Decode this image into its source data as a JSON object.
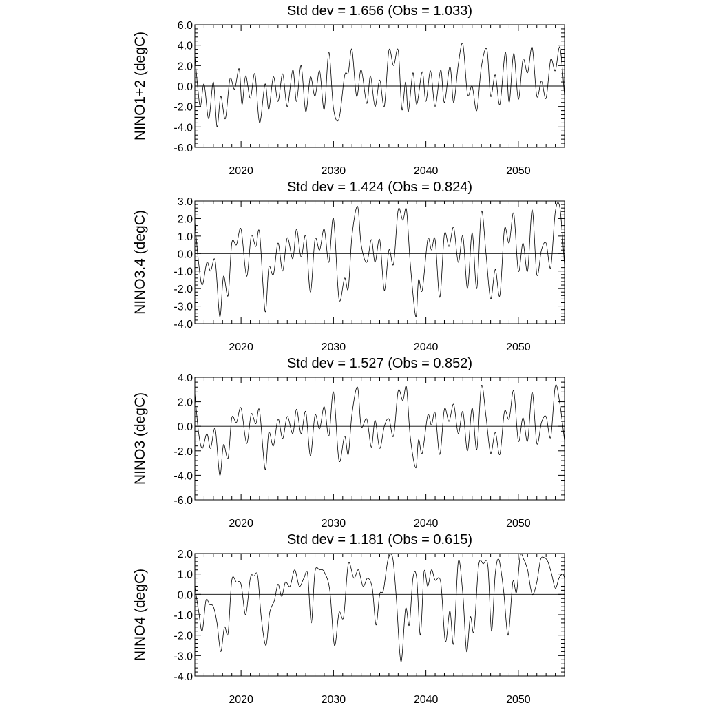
{
  "chart_data": [
    {
      "type": "line",
      "title": "Std dev = 1.656 (Obs = 1.033)",
      "xlabel": "",
      "ylabel": "NINO1+2 (degC)",
      "xlim": [
        2015,
        2055
      ],
      "ylim": [
        -6.0,
        6.0
      ],
      "yticks": [
        -6.0,
        -4.0,
        -2.0,
        0.0,
        2.0,
        4.0,
        6.0
      ],
      "ytick_labels": [
        "-6.0",
        "-4.0",
        "-2.0",
        "0.0",
        "2.0",
        "4.0",
        "6.0"
      ],
      "xticks": [
        2020,
        2030,
        2040,
        2050
      ],
      "xtick_labels": [
        "2020",
        "2030",
        "2040",
        "2050"
      ],
      "zero_line": true,
      "grid": false,
      "series": [
        {
          "x": [
            2015.0,
            2015.3,
            2015.6,
            2016.0,
            2016.5,
            2017.0,
            2017.4,
            2017.8,
            2018.3,
            2018.8,
            2019.3,
            2019.8,
            2020.1,
            2020.5,
            2021.0,
            2021.5,
            2022.0,
            2022.6,
            2023.0,
            2023.5,
            2024.0,
            2024.5,
            2025.0,
            2025.6,
            2026.0,
            2026.5,
            2027.0,
            2027.5,
            2028.0,
            2028.5,
            2029.0,
            2029.5,
            2030.0,
            2030.6,
            2031.2,
            2031.6,
            2032.0,
            2032.5,
            2033.0,
            2033.6,
            2034.0,
            2034.5,
            2035.0,
            2035.5,
            2036.0,
            2036.5,
            2037.0,
            2037.4,
            2037.8,
            2038.1,
            2038.6,
            2039.0,
            2039.6,
            2040.0,
            2040.5,
            2041.0,
            2041.6,
            2042.0,
            2042.6,
            2043.0,
            2043.5,
            2044.0,
            2044.5,
            2045.0,
            2045.5,
            2046.0,
            2046.6,
            2047.0,
            2047.5,
            2048.0,
            2048.6,
            2049.0,
            2049.5,
            2050.0,
            2050.5,
            2051.0,
            2051.5,
            2052.0,
            2052.5,
            2053.0,
            2053.5,
            2054.0,
            2054.5,
            2055.0
          ],
          "y": [
            3.0,
            0.0,
            -2.0,
            0.2,
            -3.2,
            0.4,
            -4.0,
            -1.0,
            -3.2,
            0.7,
            -0.3,
            1.7,
            -1.8,
            1.0,
            -1.2,
            1.2,
            -3.6,
            0.2,
            -2.3,
            0.9,
            -1.5,
            1.2,
            -2.0,
            1.6,
            -1.5,
            2.0,
            -2.5,
            0.9,
            -1.0,
            1.5,
            -2.3,
            3.3,
            -2.2,
            -3.2,
            1.0,
            1.3,
            3.6,
            -1.0,
            1.6,
            -1.7,
            1.0,
            -2.0,
            0.6,
            -2.0,
            3.5,
            2.0,
            3.5,
            -2.3,
            0.4,
            -2.5,
            1.3,
            -1.8,
            1.4,
            -1.5,
            1.5,
            -2.0,
            1.6,
            -1.6,
            1.9,
            -1.6,
            2.1,
            4.1,
            -0.8,
            0.0,
            -2.4,
            1.9,
            3.6,
            -1.0,
            1.1,
            -1.8,
            3.3,
            -1.6,
            3.2,
            -1.3,
            2.6,
            1.3,
            3.8,
            -1.0,
            0.5,
            -1.2,
            2.6,
            1.5,
            3.8,
            -1.0
          ]
        }
      ]
    },
    {
      "type": "line",
      "title": "Std dev = 1.424 (Obs = 0.824)",
      "xlabel": "",
      "ylabel": "NINO3.4 (degC)",
      "xlim": [
        2015,
        2055
      ],
      "ylim": [
        -4.0,
        3.0
      ],
      "yticks": [
        -4.0,
        -3.0,
        -2.0,
        -1.0,
        0.0,
        1.0,
        2.0,
        3.0
      ],
      "ytick_labels": [
        "-4.0",
        "-3.0",
        "-2.0",
        "-1.0",
        "0.0",
        "1.0",
        "2.0",
        "3.0"
      ],
      "xticks": [
        2020,
        2030,
        2040,
        2050
      ],
      "xtick_labels": [
        "2020",
        "2030",
        "2040",
        "2050"
      ],
      "zero_line": true,
      "grid": false,
      "series": [
        {
          "x": [
            2015.0,
            2015.4,
            2015.8,
            2016.3,
            2016.7,
            2017.2,
            2017.7,
            2018.1,
            2018.6,
            2019.0,
            2019.5,
            2020.0,
            2020.6,
            2021.1,
            2021.6,
            2022.0,
            2022.6,
            2023.0,
            2023.5,
            2024.0,
            2024.5,
            2025.0,
            2025.6,
            2026.0,
            2026.5,
            2027.0,
            2027.5,
            2028.0,
            2028.5,
            2029.0,
            2029.5,
            2030.0,
            2030.6,
            2031.2,
            2031.6,
            2032.0,
            2032.6,
            2033.0,
            2033.6,
            2034.1,
            2034.5,
            2035.0,
            2035.5,
            2036.0,
            2036.5,
            2037.0,
            2037.5,
            2037.9,
            2038.3,
            2038.9,
            2039.2,
            2039.6,
            2040.2,
            2040.6,
            2041.0,
            2041.5,
            2042.0,
            2042.5,
            2043.0,
            2043.5,
            2044.0,
            2044.5,
            2045.0,
            2045.5,
            2046.0,
            2046.5,
            2047.0,
            2047.5,
            2048.0,
            2048.5,
            2049.0,
            2049.5,
            2050.0,
            2050.5,
            2051.0,
            2051.5,
            2052.0,
            2052.5,
            2053.0,
            2053.5,
            2054.0,
            2054.5,
            2055.0
          ],
          "y": [
            1.8,
            -0.5,
            -1.8,
            -0.5,
            -1.0,
            -0.4,
            -3.6,
            -1.3,
            -2.4,
            0.6,
            0.5,
            1.4,
            -1.3,
            1.0,
            0.4,
            1.2,
            -3.3,
            -0.8,
            -1.2,
            0.6,
            -1.0,
            0.9,
            -0.3,
            1.4,
            -0.2,
            1.0,
            -2.2,
            0.8,
            0.2,
            1.4,
            -0.5,
            2.0,
            -2.6,
            -1.4,
            -2.0,
            1.0,
            2.7,
            0.5,
            -0.5,
            0.8,
            -0.5,
            0.8,
            -2.1,
            0.2,
            -0.6,
            2.5,
            1.9,
            2.5,
            -0.5,
            -3.6,
            -1.5,
            -2.1,
            0.8,
            0.2,
            0.8,
            -2.5,
            1.1,
            0.4,
            1.5,
            -0.5,
            1.0,
            -2.0,
            1.2,
            -2.0,
            2.4,
            0.0,
            -2.6,
            -0.9,
            -2.4,
            1.4,
            0.6,
            2.3,
            -1.0,
            0.6,
            -1.0,
            2.5,
            -1.2,
            0.2,
            0.6,
            -0.8,
            2.4,
            2.6,
            -0.7
          ]
        }
      ]
    },
    {
      "type": "line",
      "title": "Std dev = 1.527 (Obs = 0.852)",
      "xlabel": "",
      "ylabel": "NINO3 (degC)",
      "xlim": [
        2015,
        2055
      ],
      "ylim": [
        -6.0,
        4.0
      ],
      "yticks": [
        -6.0,
        -4.0,
        -2.0,
        0.0,
        2.0,
        4.0
      ],
      "ytick_labels": [
        "-6.0",
        "-4.0",
        "-2.0",
        "0.0",
        "2.0",
        "4.0"
      ],
      "xticks": [
        2020,
        2030,
        2040,
        2050
      ],
      "xtick_labels": [
        "2020",
        "2030",
        "2040",
        "2050"
      ],
      "zero_line": true,
      "grid": false,
      "series": [
        {
          "x": [
            2015.0,
            2015.4,
            2015.8,
            2016.3,
            2016.7,
            2017.2,
            2017.7,
            2018.1,
            2018.6,
            2019.0,
            2019.5,
            2020.0,
            2020.6,
            2021.1,
            2021.6,
            2022.0,
            2022.6,
            2023.0,
            2023.5,
            2024.0,
            2024.5,
            2025.0,
            2025.6,
            2026.0,
            2026.5,
            2027.0,
            2027.5,
            2028.0,
            2028.5,
            2029.0,
            2029.5,
            2030.0,
            2030.6,
            2031.2,
            2031.6,
            2032.0,
            2032.6,
            2033.0,
            2033.6,
            2034.1,
            2034.5,
            2035.0,
            2035.5,
            2036.0,
            2036.5,
            2037.0,
            2037.5,
            2037.9,
            2038.3,
            2038.9,
            2039.2,
            2039.6,
            2040.2,
            2040.6,
            2041.0,
            2041.5,
            2042.0,
            2042.5,
            2043.0,
            2043.5,
            2044.0,
            2044.5,
            2045.0,
            2045.5,
            2046.0,
            2046.5,
            2047.0,
            2047.5,
            2048.0,
            2048.5,
            2049.0,
            2049.5,
            2050.0,
            2050.5,
            2051.0,
            2051.5,
            2052.0,
            2052.5,
            2053.0,
            2053.5,
            2054.0,
            2054.5,
            2055.0
          ],
          "y": [
            2.7,
            -0.5,
            -1.8,
            -0.6,
            -1.8,
            -0.2,
            -4.0,
            -1.5,
            -2.6,
            0.7,
            0.3,
            1.5,
            -1.4,
            1.0,
            0.2,
            1.3,
            -3.5,
            -0.5,
            -1.6,
            0.6,
            -1.0,
            0.8,
            -0.6,
            1.4,
            -0.6,
            1.2,
            -2.4,
            0.9,
            -0.2,
            1.6,
            -0.8,
            2.8,
            -2.8,
            -0.8,
            -2.3,
            1.0,
            3.2,
            0.0,
            0.6,
            -1.7,
            0.5,
            -1.8,
            0.0,
            0.6,
            -0.8,
            2.9,
            2.1,
            3.2,
            -0.8,
            -3.4,
            -1.1,
            -2.2,
            0.9,
            0.1,
            1.1,
            -2.3,
            1.4,
            0.4,
            1.8,
            -0.6,
            1.2,
            -2.0,
            1.5,
            -1.9,
            3.3,
            0.8,
            -2.2,
            -0.5,
            -2.3,
            1.2,
            0.6,
            2.9,
            -1.2,
            0.7,
            -1.2,
            2.8,
            -1.4,
            0.3,
            0.8,
            -0.9,
            3.3,
            1.8,
            -1.2
          ]
        }
      ]
    },
    {
      "type": "line",
      "title": "Std dev = 1.181 (Obs = 0.615)",
      "xlabel": "",
      "ylabel": "NINO4 (degC)",
      "xlim": [
        2015,
        2055
      ],
      "ylim": [
        -4.0,
        2.0
      ],
      "yticks": [
        -4.0,
        -3.0,
        -2.0,
        -1.0,
        0.0,
        1.0,
        2.0
      ],
      "ytick_labels": [
        "-4.0",
        "-3.0",
        "-2.0",
        "-1.0",
        "0.0",
        "1.0",
        "2.0"
      ],
      "xticks": [
        2020,
        2030,
        2040,
        2050
      ],
      "xtick_labels": [
        "2020",
        "2030",
        "2040",
        "2050"
      ],
      "zero_line": true,
      "grid": false,
      "series": [
        {
          "x": [
            2015.0,
            2015.4,
            2015.8,
            2016.2,
            2016.6,
            2017.0,
            2017.4,
            2017.8,
            2018.2,
            2018.6,
            2019.0,
            2019.5,
            2020.0,
            2020.5,
            2021.0,
            2021.4,
            2021.8,
            2022.2,
            2022.7,
            2023.1,
            2023.6,
            2024.0,
            2024.4,
            2024.8,
            2025.3,
            2025.8,
            2026.3,
            2026.8,
            2027.2,
            2027.6,
            2028.0,
            2028.5,
            2029.0,
            2029.6,
            2030.1,
            2030.6,
            2031.1,
            2031.6,
            2032.2,
            2032.7,
            2033.2,
            2033.7,
            2034.2,
            2034.6,
            2035.0,
            2035.4,
            2035.9,
            2036.4,
            2036.8,
            2037.3,
            2037.8,
            2038.2,
            2038.6,
            2039.0,
            2039.4,
            2039.8,
            2040.2,
            2040.6,
            2041.0,
            2041.6,
            2042.1,
            2042.6,
            2043.0,
            2043.5,
            2044.0,
            2044.4,
            2044.8,
            2045.2,
            2045.7,
            2046.2,
            2046.7,
            2047.1,
            2047.5,
            2047.9,
            2048.4,
            2048.9,
            2049.4,
            2049.8,
            2050.2,
            2050.6,
            2051.0,
            2051.5,
            2052.0,
            2052.4,
            2052.8,
            2053.2,
            2053.6,
            2054.0,
            2054.4,
            2054.8,
            2055.0
          ],
          "y": [
            0.4,
            -0.8,
            -1.8,
            -0.3,
            -0.5,
            -0.6,
            -1.4,
            -2.8,
            -1.6,
            -1.9,
            0.7,
            0.6,
            0.5,
            -1.0,
            0.8,
            0.9,
            0.9,
            -1.2,
            -2.5,
            -0.9,
            -0.3,
            0.5,
            -0.1,
            0.6,
            0.4,
            1.2,
            0.4,
            0.8,
            1.0,
            -1.4,
            1.1,
            1.2,
            1.1,
            0.2,
            -2.5,
            -0.9,
            -1.1,
            1.5,
            0.8,
            1.2,
            0.4,
            0.8,
            0.3,
            -1.5,
            0.0,
            0.2,
            1.7,
            1.8,
            -0.2,
            -3.3,
            -0.7,
            -1.5,
            0.8,
            0.8,
            -2.0,
            1.1,
            0.4,
            1.2,
            0.7,
            0.6,
            -2.3,
            -0.8,
            -2.4,
            1.6,
            0.0,
            -2.8,
            -1.1,
            -1.8,
            1.4,
            1.5,
            1.4,
            -1.8,
            1.0,
            1.7,
            0.2,
            -2.0,
            0.6,
            0.1,
            1.9,
            1.7,
            1.2,
            0.0,
            0.6,
            1.7,
            1.8,
            1.6,
            1.0,
            0.3,
            0.8,
            1.0,
            0.8
          ]
        }
      ]
    }
  ]
}
